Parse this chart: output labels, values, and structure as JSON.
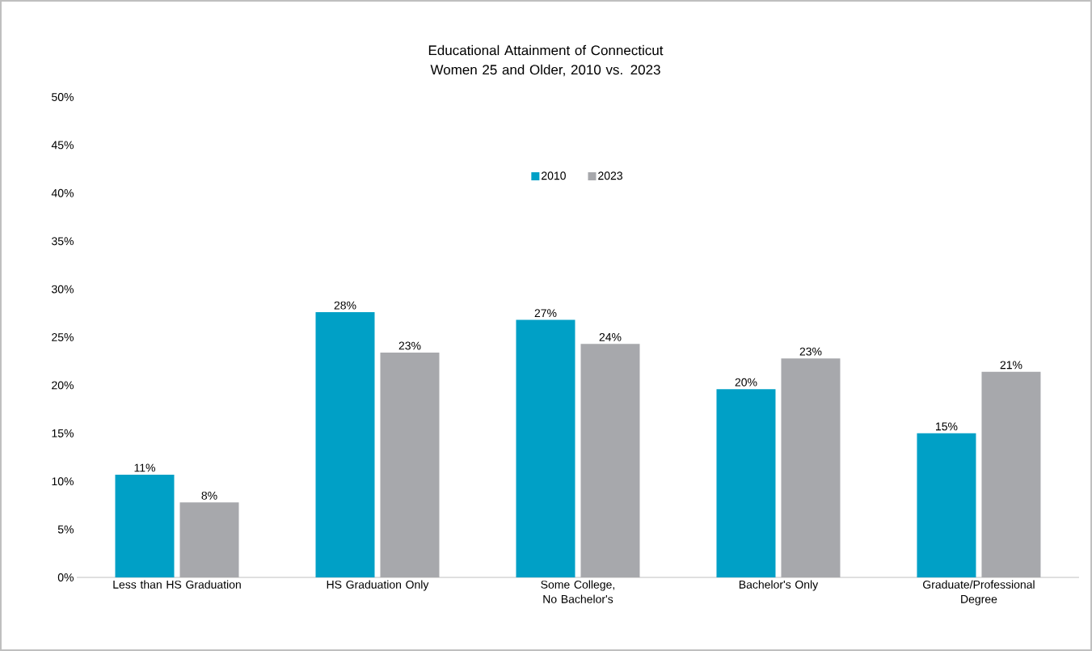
{
  "chart_data": {
    "type": "bar",
    "title": "Educational Attainment of Connecticut Women 25 and Older, 2010 vs. 2023",
    "categories": [
      "Less than HS Graduation",
      "HS Graduation Only",
      "Some College, No Bachelor's",
      "Bachelor's Only",
      "Graduate/Professional Degree"
    ],
    "series": [
      {
        "name": "2010",
        "color": "#00a0c6",
        "values": [
          10.7,
          27.6,
          26.8,
          19.6,
          15.0
        ],
        "value_labels": [
          "11%",
          "28%",
          "27%",
          "20%",
          "15%"
        ]
      },
      {
        "name": "2023",
        "color": "#a7a8ac",
        "values": [
          7.8,
          23.4,
          24.3,
          22.8,
          21.4
        ],
        "value_labels": [
          "8%",
          "23%",
          "24%",
          "23%",
          "21%"
        ]
      }
    ],
    "ylim": [
      0,
      50
    ],
    "yticks": [
      {
        "value": 0,
        "label": "0%"
      },
      {
        "value": 5,
        "label": "5%"
      },
      {
        "value": 10,
        "label": "10%"
      },
      {
        "value": 15,
        "label": "15%"
      },
      {
        "value": 20,
        "label": "20%"
      },
      {
        "value": 25,
        "label": "25%"
      },
      {
        "value": 30,
        "label": "30%"
      },
      {
        "value": 35,
        "label": "35%"
      },
      {
        "value": 40,
        "label": "40%"
      },
      {
        "value": 45,
        "label": "45%"
      },
      {
        "value": 50,
        "label": "50%"
      }
    ],
    "grid": false,
    "legend": "top"
  }
}
